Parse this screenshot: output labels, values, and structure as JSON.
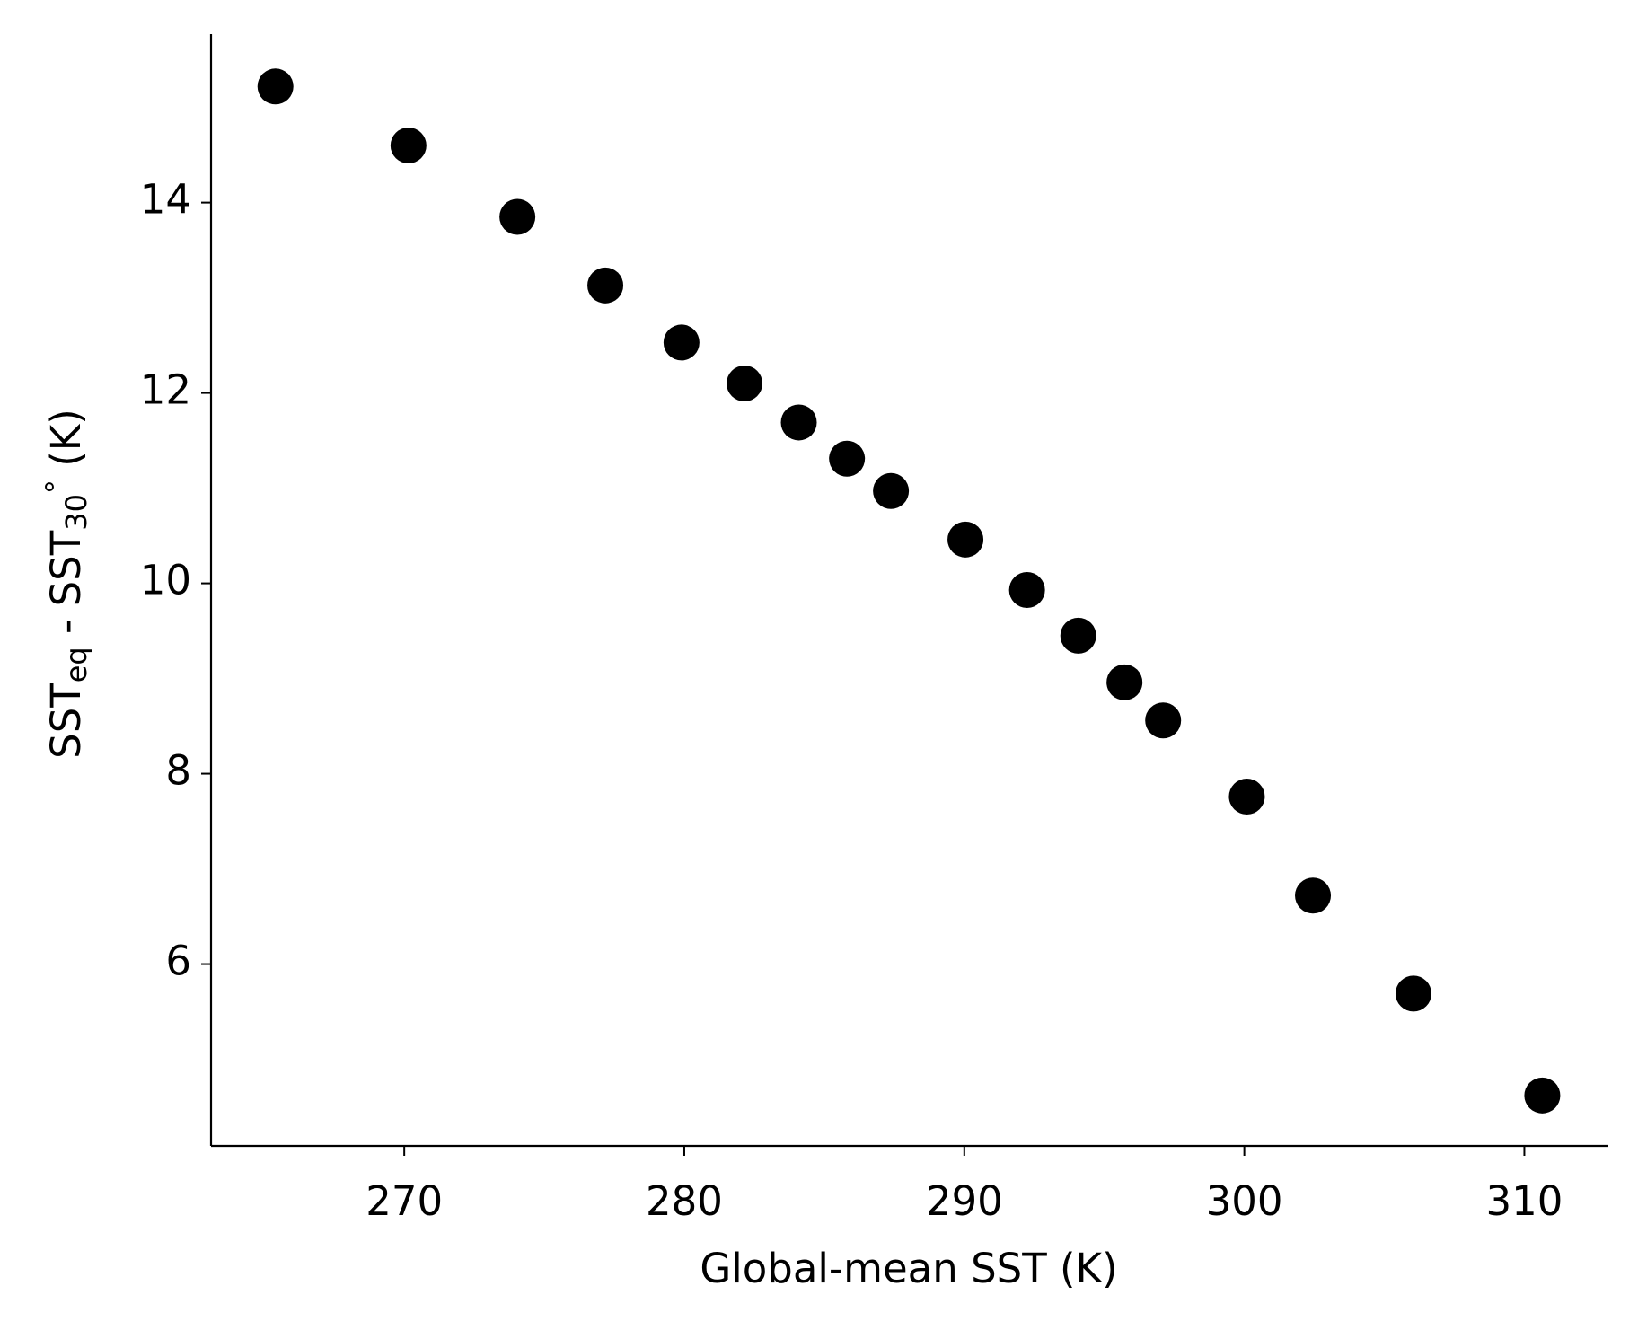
{
  "chart_data": {
    "type": "scatter",
    "x_label": "Global-mean SST (K)",
    "y_label": [
      "SST",
      "eq",
      " - SST",
      "30",
      "°",
      " (K)"
    ],
    "color": "#000000",
    "x": [
      265.4,
      270.15,
      274.04,
      277.18,
      279.9,
      282.15,
      284.09,
      285.81,
      287.38,
      290.04,
      292.24,
      294.07,
      295.72,
      297.1,
      300.09,
      302.45,
      306.04,
      310.64
    ],
    "values": [
      15.22,
      14.6,
      13.85,
      13.13,
      12.53,
      12.1,
      11.69,
      11.31,
      10.97,
      10.46,
      9.93,
      9.45,
      8.96,
      8.56,
      7.76,
      6.72,
      5.69,
      4.62
    ],
    "xlim": [
      263.1,
      313.0
    ],
    "ylim": [
      4.09,
      15.77
    ],
    "xticks": [
      270,
      280,
      290,
      300,
      310
    ],
    "yticks": [
      6,
      8,
      10,
      12,
      14
    ]
  }
}
